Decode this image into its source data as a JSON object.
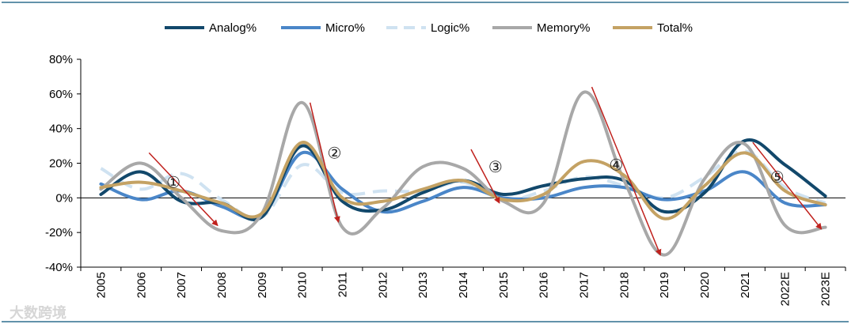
{
  "chart_data": {
    "type": "line",
    "categories": [
      "2005",
      "2006",
      "2007",
      "2008",
      "2009",
      "2010",
      "2011",
      "2012",
      "2013",
      "2014",
      "2015",
      "2016",
      "2017",
      "2018",
      "2019",
      "2020",
      "2021",
      "2022E",
      "2023E"
    ],
    "ylim": [
      -40,
      80
    ],
    "yticks": [
      -40,
      -20,
      0,
      20,
      40,
      60,
      80
    ],
    "ytick_labels": [
      "-40%",
      "-20%",
      "0%",
      "20%",
      "40%",
      "60%",
      "80%"
    ],
    "grid": false,
    "legend_position": "top",
    "series": [
      {
        "name": "Analog%",
        "color": "#12486b",
        "dash": "",
        "values": [
          2,
          15,
          -2,
          -3,
          -11,
          30,
          -2,
          -7,
          3,
          10,
          2,
          7,
          11,
          10,
          -8,
          3,
          33,
          19,
          1
        ]
      },
      {
        "name": "Micro%",
        "color": "#4a86c8",
        "dash": "",
        "values": [
          8,
          -1,
          4,
          -5,
          -10,
          26,
          5,
          -8,
          -2,
          6,
          0,
          0,
          6,
          6,
          -1,
          4,
          15,
          -3,
          -4
        ]
      },
      {
        "name": "Logic%",
        "color": "#cfe2f1",
        "dash": "18,10",
        "values": [
          17,
          5,
          14,
          -1,
          -11,
          19,
          3,
          4,
          4,
          9,
          -1,
          4,
          12,
          7,
          0,
          12,
          27,
          6,
          -3
        ]
      },
      {
        "name": "Memory%",
        "color": "#a8a8a8",
        "dash": "",
        "values": [
          5,
          20,
          0,
          -19,
          -9,
          55,
          -17,
          -6,
          18,
          17,
          -2,
          -3,
          61,
          10,
          -33,
          11,
          31,
          -16,
          -17
        ]
      },
      {
        "name": "Total%",
        "color": "#c4a264",
        "dash": "",
        "values": [
          6,
          9,
          4,
          -3,
          -9,
          32,
          0,
          -2,
          5,
          10,
          -1,
          2,
          21,
          13,
          -12,
          7,
          26,
          4,
          -4
        ]
      }
    ],
    "annotations": [
      {
        "label": "①",
        "x": "2007",
        "y": 9
      },
      {
        "label": "②",
        "x": "2011",
        "y": 26
      },
      {
        "label": "③",
        "x": "2015",
        "y": 18
      },
      {
        "label": "④",
        "x": "2018",
        "y": 19
      },
      {
        "label": "⑤",
        "x": "2022E",
        "y": 12
      }
    ],
    "trend_arrows": [
      {
        "from": {
          "x": "2006",
          "y": 26
        },
        "to": {
          "x": "2008",
          "y": -16
        }
      },
      {
        "from": {
          "x": "2010",
          "y": 55
        },
        "to": {
          "x": "2011",
          "y": -14
        }
      },
      {
        "from": {
          "x": "2014",
          "y": 28
        },
        "to": {
          "x": "2015",
          "y": -3
        }
      },
      {
        "from": {
          "x": "2017",
          "y": 64
        },
        "to": {
          "x": "2019",
          "y": -33
        }
      },
      {
        "from": {
          "x": "2021",
          "y": 32
        },
        "to": {
          "x": "2023E",
          "y": -18
        }
      }
    ],
    "arrow_color": "#c0211d"
  },
  "watermark": "大数跨境"
}
